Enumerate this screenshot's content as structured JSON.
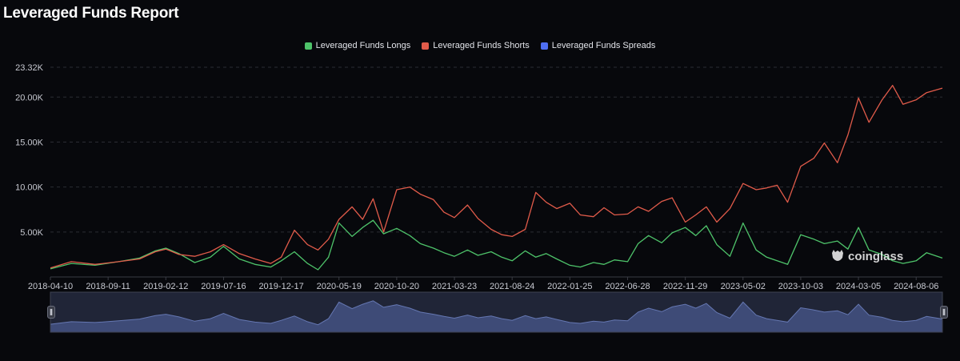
{
  "title": "Leveraged Funds Report",
  "watermark": "coinglass",
  "chart_data": {
    "type": "line",
    "title": "Leveraged Funds Report",
    "x_labels": [
      "2018-04-10",
      "2018-09-11",
      "2019-02-12",
      "2019-07-16",
      "2019-12-17",
      "2020-05-19",
      "2020-10-20",
      "2021-03-23",
      "2021-08-24",
      "2022-01-25",
      "2022-06-28",
      "2022-11-29",
      "2023-05-02",
      "2023-10-03",
      "2024-03-05",
      "2024-08-06"
    ],
    "x_range": [
      "2018-04-10",
      "2024-10-15"
    ],
    "y_ticks": [
      "5.00K",
      "10.00K",
      "15.00K",
      "20.00K",
      "23.32K"
    ],
    "ylim": [
      0,
      23320
    ],
    "grid": true,
    "legend_position": "top-center",
    "has_zoom_slider": true,
    "series": [
      {
        "name": "Leveraged Funds Longs",
        "color": "#4ec36a",
        "points": [
          [
            "2018-04-10",
            900
          ],
          [
            "2018-06-05",
            1500
          ],
          [
            "2018-08-07",
            1300
          ],
          [
            "2018-10-09",
            1700
          ],
          [
            "2018-12-04",
            2100
          ],
          [
            "2019-01-15",
            2900
          ],
          [
            "2019-02-12",
            3200
          ],
          [
            "2019-03-19",
            2600
          ],
          [
            "2019-04-30",
            1600
          ],
          [
            "2019-06-11",
            2200
          ],
          [
            "2019-07-16",
            3400
          ],
          [
            "2019-08-27",
            2000
          ],
          [
            "2019-10-08",
            1400
          ],
          [
            "2019-11-19",
            1100
          ],
          [
            "2019-12-17",
            1800
          ],
          [
            "2020-01-21",
            2800
          ],
          [
            "2020-02-25",
            1500
          ],
          [
            "2020-03-24",
            800
          ],
          [
            "2020-04-21",
            2200
          ],
          [
            "2020-05-19",
            6000
          ],
          [
            "2020-06-23",
            4500
          ],
          [
            "2020-07-21",
            5500
          ],
          [
            "2020-08-18",
            6300
          ],
          [
            "2020-09-15",
            4800
          ],
          [
            "2020-10-20",
            5400
          ],
          [
            "2020-11-24",
            4600
          ],
          [
            "2020-12-22",
            3700
          ],
          [
            "2021-01-26",
            3200
          ],
          [
            "2021-02-23",
            2700
          ],
          [
            "2021-03-23",
            2300
          ],
          [
            "2021-04-27",
            3000
          ],
          [
            "2021-05-25",
            2400
          ],
          [
            "2021-06-29",
            2800
          ],
          [
            "2021-07-27",
            2200
          ],
          [
            "2021-08-24",
            1800
          ],
          [
            "2021-09-28",
            2900
          ],
          [
            "2021-10-26",
            2200
          ],
          [
            "2021-11-23",
            2600
          ],
          [
            "2021-12-21",
            2000
          ],
          [
            "2022-01-25",
            1300
          ],
          [
            "2022-02-22",
            1100
          ],
          [
            "2022-03-29",
            1600
          ],
          [
            "2022-04-26",
            1400
          ],
          [
            "2022-05-24",
            1900
          ],
          [
            "2022-06-28",
            1700
          ],
          [
            "2022-07-26",
            3700
          ],
          [
            "2022-08-23",
            4600
          ],
          [
            "2022-09-27",
            3800
          ],
          [
            "2022-10-25",
            4900
          ],
          [
            "2022-11-29",
            5500
          ],
          [
            "2022-12-27",
            4600
          ],
          [
            "2023-01-24",
            5700
          ],
          [
            "2023-02-21",
            3600
          ],
          [
            "2023-03-28",
            2300
          ],
          [
            "2023-05-02",
            6000
          ],
          [
            "2023-06-06",
            3000
          ],
          [
            "2023-07-04",
            2200
          ],
          [
            "2023-08-01",
            1800
          ],
          [
            "2023-08-29",
            1400
          ],
          [
            "2023-10-03",
            4700
          ],
          [
            "2023-11-07",
            4200
          ],
          [
            "2023-12-05",
            3700
          ],
          [
            "2024-01-09",
            4000
          ],
          [
            "2024-02-06",
            3100
          ],
          [
            "2024-03-05",
            5500
          ],
          [
            "2024-04-02",
            3000
          ],
          [
            "2024-05-07",
            2500
          ],
          [
            "2024-06-04",
            1800
          ],
          [
            "2024-07-02",
            1500
          ],
          [
            "2024-08-06",
            1800
          ],
          [
            "2024-09-03",
            2700
          ],
          [
            "2024-10-15",
            2100
          ]
        ]
      },
      {
        "name": "Leveraged Funds Shorts",
        "color": "#e15b4a",
        "points": [
          [
            "2018-04-10",
            1000
          ],
          [
            "2018-06-05",
            1700
          ],
          [
            "2018-08-07",
            1400
          ],
          [
            "2018-10-09",
            1700
          ],
          [
            "2018-12-04",
            2000
          ],
          [
            "2019-01-15",
            2800
          ],
          [
            "2019-02-12",
            3100
          ],
          [
            "2019-03-19",
            2500
          ],
          [
            "2019-04-30",
            2300
          ],
          [
            "2019-06-11",
            2800
          ],
          [
            "2019-07-16",
            3600
          ],
          [
            "2019-08-27",
            2600
          ],
          [
            "2019-10-08",
            2000
          ],
          [
            "2019-11-19",
            1500
          ],
          [
            "2019-12-17",
            2200
          ],
          [
            "2020-01-21",
            5200
          ],
          [
            "2020-02-25",
            3600
          ],
          [
            "2020-03-24",
            3000
          ],
          [
            "2020-04-21",
            4200
          ],
          [
            "2020-05-19",
            6400
          ],
          [
            "2020-06-23",
            7800
          ],
          [
            "2020-07-21",
            6400
          ],
          [
            "2020-08-18",
            8700
          ],
          [
            "2020-09-15",
            5000
          ],
          [
            "2020-10-20",
            9700
          ],
          [
            "2020-11-24",
            10000
          ],
          [
            "2020-12-22",
            9200
          ],
          [
            "2021-01-26",
            8600
          ],
          [
            "2021-02-23",
            7200
          ],
          [
            "2021-03-23",
            6600
          ],
          [
            "2021-04-27",
            8000
          ],
          [
            "2021-05-25",
            6500
          ],
          [
            "2021-06-29",
            5300
          ],
          [
            "2021-07-27",
            4700
          ],
          [
            "2021-08-24",
            4500
          ],
          [
            "2021-09-28",
            5300
          ],
          [
            "2021-10-26",
            9400
          ],
          [
            "2021-11-23",
            8300
          ],
          [
            "2021-12-21",
            7600
          ],
          [
            "2022-01-25",
            8200
          ],
          [
            "2022-02-22",
            6900
          ],
          [
            "2022-03-29",
            6700
          ],
          [
            "2022-04-26",
            7700
          ],
          [
            "2022-05-24",
            6900
          ],
          [
            "2022-06-28",
            7000
          ],
          [
            "2022-07-26",
            7800
          ],
          [
            "2022-08-23",
            7300
          ],
          [
            "2022-09-27",
            8400
          ],
          [
            "2022-10-25",
            8800
          ],
          [
            "2022-11-29",
            6100
          ],
          [
            "2022-12-27",
            6900
          ],
          [
            "2023-01-24",
            7800
          ],
          [
            "2023-02-21",
            6100
          ],
          [
            "2023-03-28",
            7600
          ],
          [
            "2023-05-02",
            10400
          ],
          [
            "2023-06-06",
            9700
          ],
          [
            "2023-07-04",
            9900
          ],
          [
            "2023-08-01",
            10200
          ],
          [
            "2023-08-29",
            8300
          ],
          [
            "2023-10-03",
            12300
          ],
          [
            "2023-11-07",
            13200
          ],
          [
            "2023-12-05",
            14900
          ],
          [
            "2024-01-09",
            12700
          ],
          [
            "2024-02-06",
            15800
          ],
          [
            "2024-03-05",
            19900
          ],
          [
            "2024-04-02",
            17200
          ],
          [
            "2024-05-07",
            19700
          ],
          [
            "2024-06-04",
            21300
          ],
          [
            "2024-07-02",
            19200
          ],
          [
            "2024-08-06",
            19700
          ],
          [
            "2024-09-03",
            20500
          ],
          [
            "2024-10-15",
            21000
          ]
        ]
      },
      {
        "name": "Leveraged Funds Spreads",
        "color": "#4e6ef2",
        "points": []
      }
    ]
  }
}
